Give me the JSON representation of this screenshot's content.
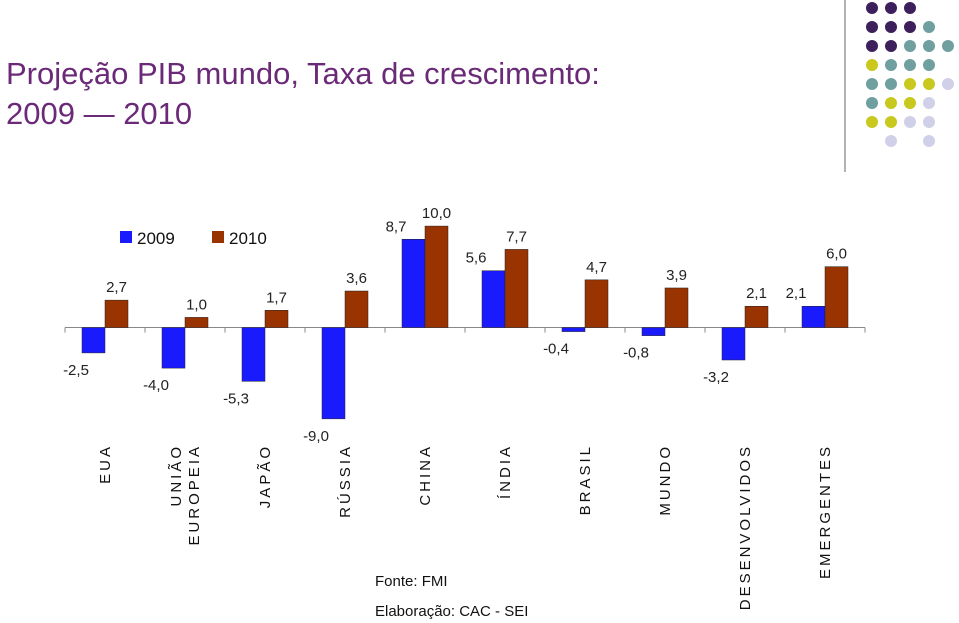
{
  "chart_data": {
    "type": "bar",
    "title_lines": [
      "Projeção PIB mundo, Taxa de crescimento:",
      "2009 — 2010"
    ],
    "categories": [
      "EUA",
      "UNIÃO EUROPEIA",
      "JAPÃO",
      "RÚSSIA",
      "CHINA",
      "ÍNDIA",
      "BRASIL",
      "MUNDO",
      "DESENVOLVIDOS",
      "EMERGENTES"
    ],
    "series": [
      {
        "name": "2009",
        "color": "#1a1aff",
        "values": [
          -2.5,
          -4.0,
          -5.3,
          -9.0,
          8.7,
          5.6,
          -0.4,
          -0.8,
          -3.2,
          2.1
        ],
        "value_labels": [
          "-2,5",
          "-4,0",
          "-5,3",
          "-9,0",
          "8,7",
          "5,6",
          "-0,4",
          "-0,8",
          "-3,2",
          "2,1"
        ]
      },
      {
        "name": "2010",
        "color": "#993300",
        "values": [
          2.7,
          1.0,
          1.7,
          3.6,
          10.0,
          7.7,
          4.7,
          3.9,
          2.1,
          6.0
        ],
        "value_labels": [
          "2,7",
          "1,0",
          "1,7",
          "3,6",
          "10,0",
          "7,7",
          "4,7",
          "3,9",
          "2,1",
          "6,0"
        ]
      }
    ],
    "ylim": [
      -10,
      10.5
    ],
    "notes": [
      "Fonte: FMI",
      "Elaboração: CAC - SEI"
    ]
  }
}
